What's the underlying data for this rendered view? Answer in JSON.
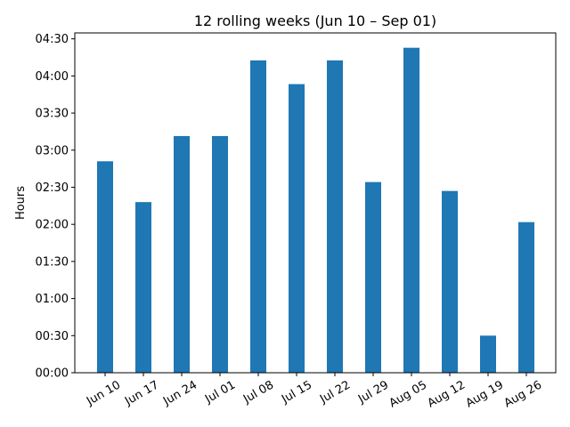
{
  "chart_data": {
    "type": "bar",
    "title": "12 rolling weeks (Jun 10 – Sep 01)",
    "xlabel": "",
    "ylabel": "Hours",
    "categories": [
      "Jun 10",
      "Jun 17",
      "Jun 24",
      "Jul 01",
      "Jul 08",
      "Jul 15",
      "Jul 22",
      "Jul 29",
      "Aug 05",
      "Aug 12",
      "Aug 19",
      "Aug 26"
    ],
    "values": [
      2.85,
      2.3,
      3.19,
      3.19,
      4.21,
      3.89,
      4.21,
      2.57,
      4.38,
      2.45,
      0.5,
      2.03
    ],
    "value_unit": "hours",
    "ylim": [
      0,
      4.58
    ],
    "yticks": [
      0,
      0.5,
      1,
      1.5,
      2,
      2.5,
      3,
      3.5,
      4,
      4.5
    ],
    "ytick_labels": [
      "00:00",
      "00:30",
      "01:00",
      "01:30",
      "02:00",
      "02:30",
      "03:00",
      "03:30",
      "04:00",
      "04:30"
    ],
    "bar_color": "#1f77b4",
    "grid": false,
    "legend": "none"
  }
}
